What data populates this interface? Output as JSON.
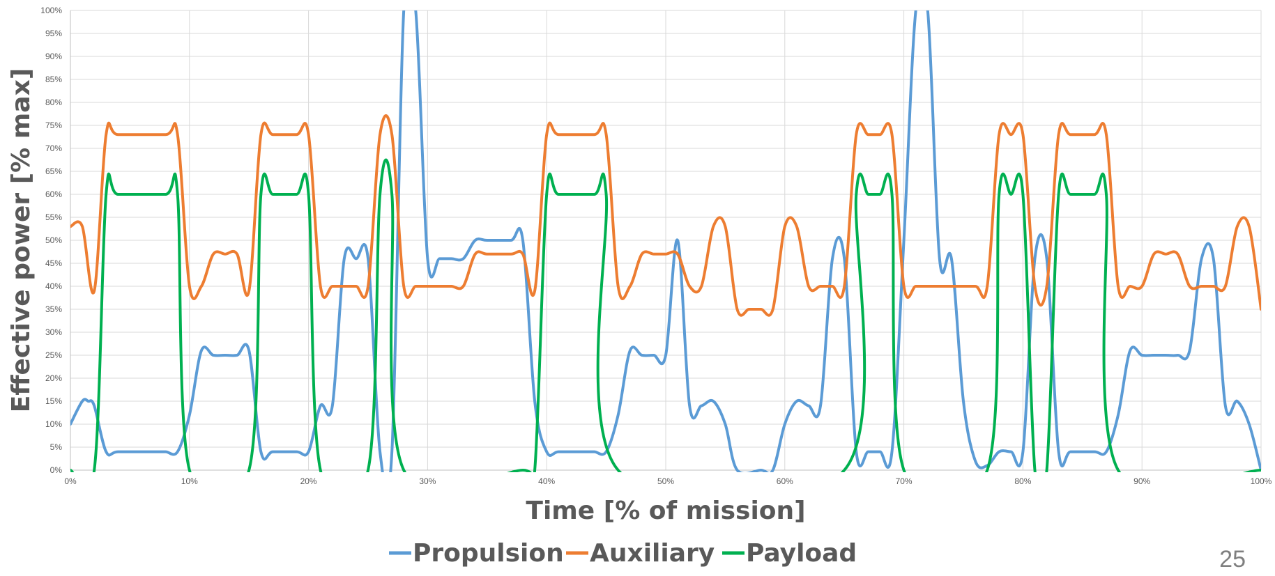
{
  "page_number": "25",
  "chart_data": {
    "type": "line",
    "xlabel": "Time [% of mission]",
    "ylabel": "Effective power [% max]",
    "xlim": [
      0,
      100
    ],
    "ylim": [
      0,
      100
    ],
    "grid": true,
    "legend_position": "bottom",
    "x_ticks": [
      "0%",
      "10%",
      "20%",
      "30%",
      "40%",
      "50%",
      "60%",
      "70%",
      "80%",
      "90%",
      "100%"
    ],
    "y_ticks": [
      "0%",
      "5%",
      "10%",
      "15%",
      "20%",
      "25%",
      "30%",
      "35%",
      "40%",
      "45%",
      "50%",
      "55%",
      "60%",
      "65%",
      "70%",
      "75%",
      "80%",
      "85%",
      "90%",
      "95%",
      "100%"
    ],
    "series": [
      {
        "name": "Propulsion",
        "color": "#5b9bd5",
        "points": [
          [
            0,
            10
          ],
          [
            1,
            15
          ],
          [
            1.5,
            15
          ],
          [
            2,
            14
          ],
          [
            3,
            4
          ],
          [
            4,
            4
          ],
          [
            7,
            4
          ],
          [
            8,
            4
          ],
          [
            9,
            4
          ],
          [
            10,
            12
          ],
          [
            11,
            26
          ],
          [
            12,
            25
          ],
          [
            13,
            25
          ],
          [
            14,
            25
          ],
          [
            15,
            26
          ],
          [
            16,
            4
          ],
          [
            17,
            4
          ],
          [
            19,
            4
          ],
          [
            20,
            4
          ],
          [
            21,
            14
          ],
          [
            22,
            14
          ],
          [
            23,
            46
          ],
          [
            24,
            46
          ],
          [
            25,
            46
          ],
          [
            26,
            4
          ],
          [
            27,
            4
          ],
          [
            28,
            100
          ],
          [
            29,
            100
          ],
          [
            30,
            46
          ],
          [
            31,
            46
          ],
          [
            32,
            46
          ],
          [
            33,
            46
          ],
          [
            34,
            50
          ],
          [
            35,
            50
          ],
          [
            37,
            50
          ],
          [
            38,
            50
          ],
          [
            39,
            15
          ],
          [
            40,
            4
          ],
          [
            41,
            4
          ],
          [
            43,
            4
          ],
          [
            44,
            4
          ],
          [
            45,
            4
          ],
          [
            46,
            12
          ],
          [
            47,
            26
          ],
          [
            48,
            25
          ],
          [
            49,
            25
          ],
          [
            50,
            25
          ],
          [
            51,
            50
          ],
          [
            52,
            14
          ],
          [
            53,
            14
          ],
          [
            54,
            15
          ],
          [
            55,
            10
          ],
          [
            56,
            0
          ],
          [
            58,
            0
          ],
          [
            59,
            0
          ],
          [
            60,
            10
          ],
          [
            61,
            15
          ],
          [
            62,
            14
          ],
          [
            63,
            14
          ],
          [
            64,
            46
          ],
          [
            65,
            46
          ],
          [
            66,
            4
          ],
          [
            67,
            4
          ],
          [
            68,
            4
          ],
          [
            69,
            4
          ],
          [
            70,
            50
          ],
          [
            71,
            100
          ],
          [
            72,
            100
          ],
          [
            73,
            46
          ],
          [
            74,
            46
          ],
          [
            75,
            15
          ],
          [
            76,
            2
          ],
          [
            77,
            1
          ],
          [
            78,
            4
          ],
          [
            79,
            4
          ],
          [
            80,
            4
          ],
          [
            81,
            46
          ],
          [
            82,
            46
          ],
          [
            83,
            4
          ],
          [
            84,
            4
          ],
          [
            86,
            4
          ],
          [
            87,
            4
          ],
          [
            88,
            12
          ],
          [
            89,
            26
          ],
          [
            90,
            25
          ],
          [
            91,
            25
          ],
          [
            92,
            25
          ],
          [
            93,
            25
          ],
          [
            94,
            26
          ],
          [
            95,
            46
          ],
          [
            96,
            46
          ],
          [
            97,
            14
          ],
          [
            98,
            15
          ],
          [
            99,
            10
          ],
          [
            100,
            0
          ]
        ]
      },
      {
        "name": "Auxiliary",
        "color": "#ed7d31",
        "points": [
          [
            0,
            53
          ],
          [
            1,
            53
          ],
          [
            2,
            39
          ],
          [
            3,
            73
          ],
          [
            4,
            73
          ],
          [
            8,
            73
          ],
          [
            9,
            73
          ],
          [
            10,
            40
          ],
          [
            11,
            40
          ],
          [
            12,
            47
          ],
          [
            13,
            47
          ],
          [
            14,
            47
          ],
          [
            15,
            39
          ],
          [
            16,
            73
          ],
          [
            17,
            73
          ],
          [
            19,
            73
          ],
          [
            20,
            73
          ],
          [
            21,
            40
          ],
          [
            22,
            40
          ],
          [
            23,
            40
          ],
          [
            24,
            40
          ],
          [
            25,
            40
          ],
          [
            26,
            73
          ],
          [
            27,
            73
          ],
          [
            28,
            40
          ],
          [
            29,
            40
          ],
          [
            30,
            40
          ],
          [
            31,
            40
          ],
          [
            32,
            40
          ],
          [
            33,
            40
          ],
          [
            34,
            47
          ],
          [
            35,
            47
          ],
          [
            37,
            47
          ],
          [
            38,
            47
          ],
          [
            39,
            39
          ],
          [
            40,
            73
          ],
          [
            41,
            73
          ],
          [
            44,
            73
          ],
          [
            45,
            73
          ],
          [
            46,
            40
          ],
          [
            47,
            40
          ],
          [
            48,
            47
          ],
          [
            49,
            47
          ],
          [
            50,
            47
          ],
          [
            51,
            47
          ],
          [
            52,
            40
          ],
          [
            53,
            40
          ],
          [
            54,
            53
          ],
          [
            55,
            53
          ],
          [
            56,
            35
          ],
          [
            57,
            35
          ],
          [
            58,
            35
          ],
          [
            59,
            35
          ],
          [
            60,
            53
          ],
          [
            61,
            53
          ],
          [
            62,
            40
          ],
          [
            63,
            40
          ],
          [
            64,
            40
          ],
          [
            65,
            40
          ],
          [
            66,
            73
          ],
          [
            67,
            73
          ],
          [
            68,
            73
          ],
          [
            69,
            73
          ],
          [
            70,
            40
          ],
          [
            71,
            40
          ],
          [
            72,
            40
          ],
          [
            74,
            40
          ],
          [
            76,
            40
          ],
          [
            77,
            40
          ],
          [
            78,
            73
          ],
          [
            79,
            73
          ],
          [
            80,
            73
          ],
          [
            81,
            40
          ],
          [
            82,
            40
          ],
          [
            83,
            73
          ],
          [
            84,
            73
          ],
          [
            86,
            73
          ],
          [
            87,
            73
          ],
          [
            88,
            40
          ],
          [
            89,
            40
          ],
          [
            90,
            40
          ],
          [
            91,
            47
          ],
          [
            92,
            47
          ],
          [
            93,
            47
          ],
          [
            94,
            40
          ],
          [
            95,
            40
          ],
          [
            96,
            40
          ],
          [
            97,
            40
          ],
          [
            98,
            53
          ],
          [
            99,
            53
          ],
          [
            100,
            35
          ]
        ]
      },
      {
        "name": "Payload",
        "color": "#00b050",
        "points": [
          [
            0,
            0
          ],
          [
            2,
            0
          ],
          [
            3,
            60
          ],
          [
            4,
            60
          ],
          [
            8,
            60
          ],
          [
            9,
            60
          ],
          [
            10,
            0
          ],
          [
            15,
            0
          ],
          [
            16,
            60
          ],
          [
            17,
            60
          ],
          [
            19,
            60
          ],
          [
            20,
            60
          ],
          [
            21,
            0
          ],
          [
            25,
            0
          ],
          [
            26,
            60
          ],
          [
            27,
            60
          ],
          [
            28,
            0
          ],
          [
            38,
            0
          ],
          [
            39,
            0
          ],
          [
            40,
            60
          ],
          [
            41,
            60
          ],
          [
            44,
            60
          ],
          [
            45,
            60
          ],
          [
            46,
            0
          ],
          [
            65,
            0
          ],
          [
            66,
            60
          ],
          [
            67,
            60
          ],
          [
            68,
            60
          ],
          [
            69,
            60
          ],
          [
            70,
            0
          ],
          [
            77,
            0
          ],
          [
            78,
            60
          ],
          [
            79,
            60
          ],
          [
            80,
            60
          ],
          [
            81,
            0
          ],
          [
            82,
            0
          ],
          [
            83,
            60
          ],
          [
            84,
            60
          ],
          [
            86,
            60
          ],
          [
            87,
            60
          ],
          [
            88,
            0
          ],
          [
            100,
            0
          ]
        ]
      }
    ]
  }
}
